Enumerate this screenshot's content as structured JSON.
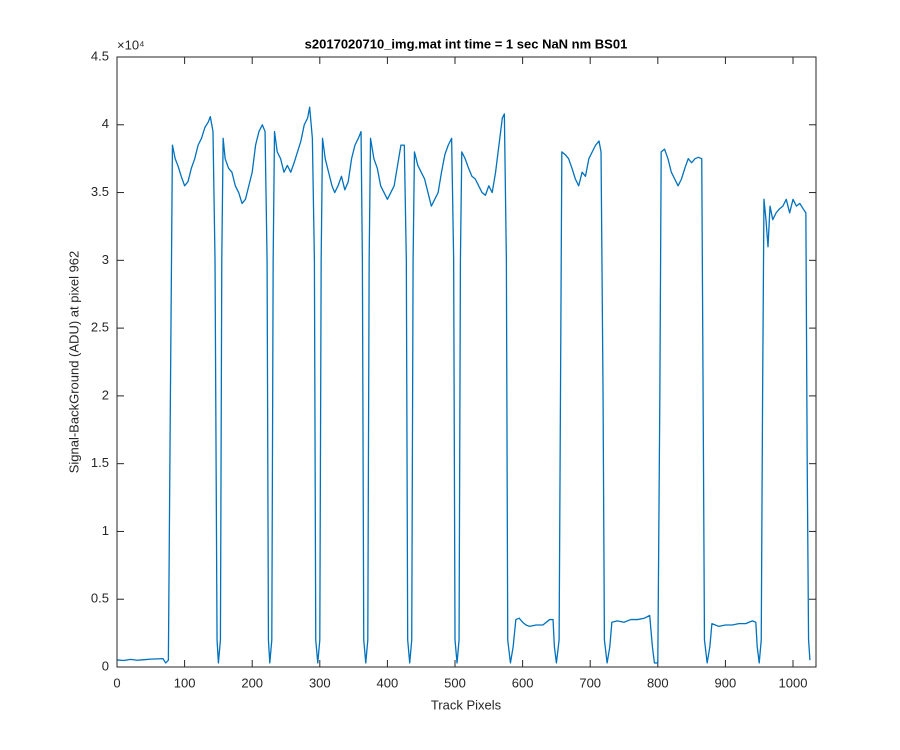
{
  "chart_data": {
    "type": "line",
    "title": "s2017020710_img.mat int time = 1 sec  NaN nm BS01",
    "x_label": "Track Pixels",
    "y_label": "Signal-BackGround (ADU) at pixel 962",
    "y_exponent_label": "×10⁴",
    "xlim": [
      0,
      1034
    ],
    "ylim": [
      0,
      45000
    ],
    "xticks": [
      0,
      100,
      200,
      300,
      400,
      500,
      600,
      700,
      800,
      900,
      1000
    ],
    "yticks": [
      0,
      {
        "value": 5000,
        "label": "0.5"
      },
      {
        "value": 10000,
        "label": "1"
      },
      {
        "value": 15000,
        "label": "1.5"
      },
      {
        "value": 20000,
        "label": "2"
      },
      {
        "value": 25000,
        "label": "2.5"
      },
      {
        "value": 30000,
        "label": "3"
      },
      {
        "value": 35000,
        "label": "3.5"
      },
      {
        "value": 40000,
        "label": "4"
      },
      {
        "value": 45000,
        "label": "4.5"
      }
    ],
    "grid": false,
    "x": [
      0,
      10,
      20,
      30,
      40,
      50,
      60,
      68,
      72,
      76,
      79,
      82,
      86,
      90,
      95,
      100,
      105,
      110,
      115,
      120,
      125,
      130,
      135,
      138,
      142,
      145,
      148,
      150,
      153,
      155,
      157,
      160,
      165,
      170,
      175,
      180,
      185,
      190,
      195,
      200,
      205,
      210,
      215,
      219,
      222,
      224,
      226,
      229,
      231,
      233,
      237,
      242,
      247,
      252,
      257,
      262,
      267,
      272,
      277,
      282,
      285,
      289,
      292,
      294,
      297,
      300,
      302,
      304,
      308,
      313,
      318,
      322,
      327,
      332,
      337,
      342,
      347,
      352,
      357,
      361,
      363,
      365,
      368,
      371,
      373,
      375,
      380,
      385,
      390,
      395,
      400,
      405,
      410,
      415,
      420,
      425,
      428,
      430,
      433,
      436,
      438,
      440,
      445,
      450,
      455,
      460,
      465,
      470,
      475,
      480,
      485,
      490,
      495,
      498,
      500,
      503,
      506,
      508,
      510,
      515,
      520,
      525,
      530,
      535,
      540,
      545,
      550,
      555,
      560,
      565,
      570,
      573,
      576,
      578,
      582,
      586,
      590,
      595,
      600,
      605,
      610,
      620,
      630,
      640,
      645,
      647,
      650,
      654,
      656,
      658,
      663,
      668,
      673,
      678,
      683,
      688,
      693,
      698,
      703,
      708,
      713,
      716,
      719,
      721,
      725,
      729,
      732,
      740,
      750,
      760,
      770,
      780,
      788,
      792,
      795,
      800,
      803,
      805,
      810,
      815,
      820,
      825,
      830,
      835,
      840,
      845,
      850,
      855,
      860,
      865,
      867,
      869,
      873,
      877,
      880,
      890,
      900,
      910,
      920,
      930,
      940,
      945,
      947,
      950,
      953,
      955,
      957,
      960,
      963,
      966,
      970,
      975,
      980,
      985,
      990,
      995,
      1000,
      1005,
      1010,
      1015,
      1019,
      1021,
      1023,
      1025
    ],
    "series": [
      {
        "color": "#0072BD",
        "values": [
          520,
          480,
          560,
          500,
          540,
          580,
          600,
          620,
          300,
          500,
          20000,
          38500,
          37500,
          37000,
          36200,
          35500,
          35800,
          36800,
          37500,
          38500,
          39000,
          39800,
          40200,
          40600,
          39500,
          30000,
          2000,
          300,
          2000,
          30000,
          39000,
          37500,
          36800,
          36500,
          35500,
          35000,
          34200,
          34500,
          35500,
          36500,
          38500,
          39500,
          40000,
          39500,
          30000,
          2000,
          300,
          2000,
          30000,
          39500,
          38000,
          37500,
          36500,
          37000,
          36500,
          37200,
          38000,
          38800,
          40000,
          40500,
          41300,
          39000,
          30000,
          2000,
          300,
          2000,
          30000,
          39000,
          37500,
          36500,
          35500,
          35000,
          35500,
          36200,
          35200,
          35800,
          37500,
          38500,
          39000,
          39500,
          30000,
          2000,
          300,
          2000,
          30000,
          39000,
          37500,
          36800,
          35500,
          35000,
          34500,
          35000,
          35500,
          37000,
          38500,
          38500,
          30000,
          2000,
          300,
          2000,
          30000,
          38000,
          37000,
          36500,
          36000,
          35000,
          34000,
          34500,
          35000,
          36500,
          37800,
          38500,
          39000,
          30000,
          2000,
          300,
          2000,
          30000,
          38000,
          37500,
          36800,
          36200,
          36000,
          35500,
          35000,
          34800,
          35500,
          35000,
          36500,
          38500,
          40500,
          40800,
          30000,
          2000,
          300,
          1500,
          3500,
          3600,
          3300,
          3100,
          3000,
          3100,
          3100,
          3500,
          3500,
          1500,
          300,
          2000,
          20000,
          38000,
          37800,
          37500,
          36800,
          36000,
          35500,
          36500,
          36200,
          37500,
          38000,
          38500,
          38800,
          38000,
          20000,
          2000,
          300,
          1500,
          3300,
          3400,
          3300,
          3500,
          3500,
          3600,
          3800,
          1500,
          300,
          300,
          20000,
          38000,
          38200,
          37500,
          36500,
          36000,
          35500,
          36000,
          36800,
          37500,
          37200,
          37500,
          37600,
          37500,
          20000,
          2000,
          300,
          1500,
          3200,
          3000,
          3100,
          3100,
          3200,
          3200,
          3400,
          3300,
          1500,
          300,
          2000,
          20000,
          34500,
          33000,
          31000,
          34000,
          33000,
          33500,
          33800,
          34000,
          34500,
          33500,
          34500,
          34000,
          34200,
          33800,
          33500,
          15000,
          2000,
          500
        ]
      }
    ]
  }
}
